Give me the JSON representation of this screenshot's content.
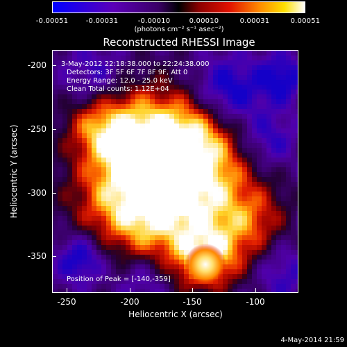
{
  "colorbar": {
    "tick_labels": [
      "-0.00051",
      "-0.00031",
      "-0.00010",
      "0.00010",
      "0.00031",
      "0.00051"
    ],
    "tick_values": [
      -0.00051,
      -0.00031,
      -0.0001,
      0.0001,
      0.00031,
      0.00051
    ],
    "units_label": "(photons cm⁻² s⁻¹ asec⁻²)",
    "colors": {
      "min": "#0000ff",
      "low": "#5b00b8",
      "zero": "#000000",
      "mid": "#e01000",
      "high": "#ffe000",
      "max": "#ffffff"
    }
  },
  "plot": {
    "title": "Reconstructed RHESSI Image",
    "info_lines": [
      "3-May-2012 22:18:38.000 to 22:24:38.000",
      "Detectors: 3F 5F 6F 7F 8F 9F, Att 0",
      "Energy Range: 12.0 - 25.0 keV",
      "Clean    Total counts: 1.12E+04"
    ],
    "peak_label": "Position of Peak = [-140,-359]",
    "xlabel": "Heliocentric X (arcsec)",
    "ylabel": "Heliocentric Y (arcsec)",
    "x_ticks": [
      "-250",
      "-200",
      "-150",
      "-100"
    ],
    "y_ticks": [
      "-200",
      "-250",
      "-300",
      "-350"
    ]
  },
  "footer": {
    "date": "4-May-2014 21:59"
  },
  "chart_data": {
    "type": "heatmap",
    "title": "Reconstructed RHESSI Image",
    "xlabel": "Heliocentric X (arcsec)",
    "ylabel": "Heliocentric Y (arcsec)",
    "xlim": [
      -262,
      -68
    ],
    "ylim": [
      -382,
      -190
    ],
    "x_ticks": [
      -250,
      -200,
      -150,
      -100
    ],
    "y_ticks": [
      -200,
      -250,
      -300,
      -350
    ],
    "value_range": [
      -0.00051,
      0.00051
    ],
    "peak": [
      -140,
      -359
    ]
  }
}
